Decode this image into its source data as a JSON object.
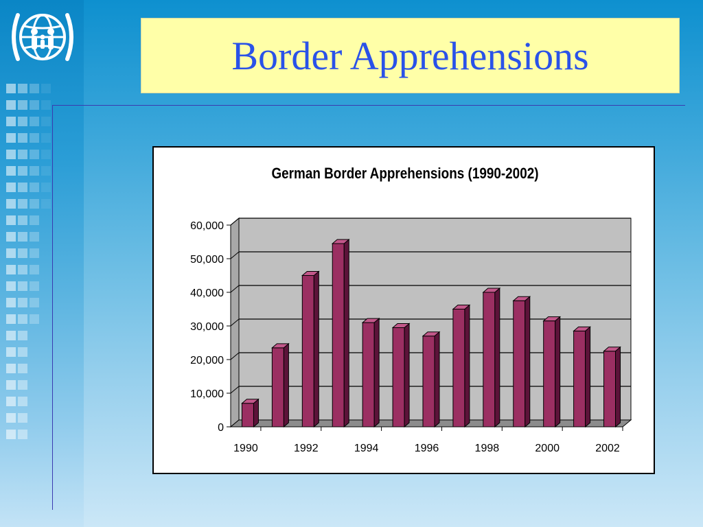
{
  "slide": {
    "title": "Border Apprehensions"
  },
  "colors": {
    "title_text": "#2a52e8",
    "title_bg": "#ffffa8",
    "bar_front": "#9b2f62",
    "bar_side": "#5c1339",
    "bar_top": "#c2588a",
    "plot_bg": "#c0c0c0"
  },
  "logo": {
    "icon": "iom-globe-family-icon"
  },
  "chart_data": {
    "type": "bar",
    "title": "German Border Apprehensions (1990-2002)",
    "xlabel": "",
    "ylabel": "",
    "categories": [
      "1990",
      "1991",
      "1992",
      "1993",
      "1994",
      "1995",
      "1996",
      "1997",
      "1998",
      "1999",
      "2000",
      "2001",
      "2002"
    ],
    "tick_labels_x": [
      "1990",
      "1992",
      "1994",
      "1996",
      "1998",
      "2000",
      "2002"
    ],
    "values": [
      7000,
      23500,
      45000,
      54500,
      31000,
      29500,
      27000,
      35000,
      40000,
      37500,
      31500,
      28500,
      22500
    ],
    "ylim": [
      0,
      60000
    ],
    "y_ticks": [
      0,
      10000,
      20000,
      30000,
      40000,
      50000,
      60000
    ],
    "y_tick_labels": [
      "0",
      "10,000",
      "20,000",
      "30,000",
      "40,000",
      "50,000",
      "60,000"
    ],
    "grid": true,
    "legend": "none",
    "style": "3d-column"
  }
}
